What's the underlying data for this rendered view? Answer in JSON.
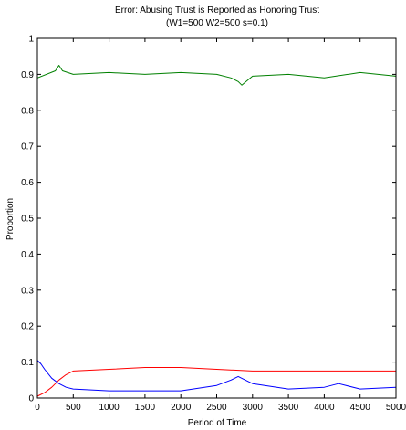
{
  "chart_data": {
    "type": "line",
    "title": "Error: Abusing Trust is Reported as Honoring Trust",
    "subtitle": "(W1=500  W2=500  s=0.1)",
    "xlabel": "Period of Time",
    "ylabel": "Proportion",
    "xlim": [
      0,
      5000
    ],
    "ylim": [
      0,
      1
    ],
    "xticks": [
      0,
      500,
      1000,
      1500,
      2000,
      2500,
      3000,
      3500,
      4000,
      4500,
      5000
    ],
    "yticks": [
      0,
      0.1,
      0.2,
      0.3,
      0.4,
      0.5,
      0.6,
      0.7,
      0.8,
      0.9,
      1
    ],
    "ytick_labels": [
      "0",
      "0.1",
      "0.2",
      "0.3",
      "0.4",
      "0.5",
      "0.6",
      "0.7",
      "0.8",
      "0.9",
      "1"
    ],
    "grid": false,
    "series": [
      {
        "color": "#008000",
        "x": [
          0,
          250,
          300,
          350,
          500,
          1000,
          1500,
          2000,
          2500,
          2700,
          2800,
          2850,
          3000,
          3500,
          4000,
          4500,
          5000
        ],
        "values": [
          0.89,
          0.91,
          0.925,
          0.91,
          0.9,
          0.905,
          0.9,
          0.905,
          0.9,
          0.89,
          0.88,
          0.87,
          0.895,
          0.9,
          0.89,
          0.905,
          0.895
        ]
      },
      {
        "color": "#ff0000",
        "x": [
          0,
          100,
          200,
          300,
          400,
          500,
          1000,
          1500,
          2000,
          2500,
          3000,
          3500,
          4000,
          4500,
          5000
        ],
        "values": [
          0.005,
          0.015,
          0.03,
          0.05,
          0.065,
          0.075,
          0.08,
          0.085,
          0.085,
          0.08,
          0.075,
          0.075,
          0.075,
          0.075,
          0.075
        ]
      },
      {
        "color": "#0000ff",
        "x": [
          0,
          50,
          100,
          200,
          300,
          400,
          500,
          1000,
          1500,
          2000,
          2500,
          2700,
          2800,
          2900,
          3000,
          3500,
          4000,
          4200,
          4500,
          5000
        ],
        "values": [
          0.105,
          0.095,
          0.08,
          0.055,
          0.04,
          0.03,
          0.025,
          0.02,
          0.02,
          0.02,
          0.035,
          0.05,
          0.06,
          0.05,
          0.04,
          0.025,
          0.03,
          0.04,
          0.025,
          0.03
        ]
      }
    ]
  }
}
